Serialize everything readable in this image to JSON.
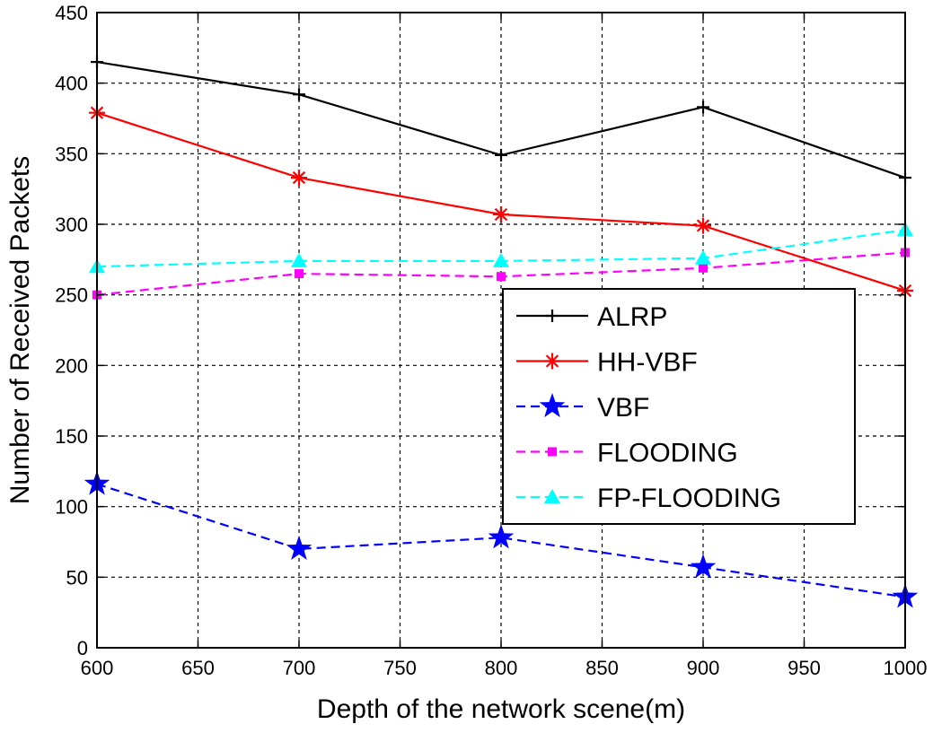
{
  "chart_data": {
    "type": "line",
    "title": "",
    "xlabel": "Depth of the network scene(m)",
    "ylabel": "Number of Received Packets",
    "xlim": [
      600,
      1000
    ],
    "ylim": [
      0,
      450
    ],
    "xticks": [
      600,
      650,
      700,
      750,
      800,
      850,
      900,
      950,
      1000
    ],
    "yticks": [
      0,
      50,
      100,
      150,
      200,
      250,
      300,
      350,
      400,
      450
    ],
    "grid": true,
    "legend_position": "center-right",
    "x": [
      600,
      700,
      800,
      900,
      1000
    ],
    "series": [
      {
        "name": "ALRP",
        "color": "#000000",
        "dash": "solid",
        "marker": "plus",
        "values": [
          415,
          392,
          349,
          383,
          333
        ]
      },
      {
        "name": "HH-VBF",
        "color": "#ff0000",
        "dash": "solid",
        "marker": "asterisk",
        "values": [
          379,
          333,
          307,
          299,
          253
        ]
      },
      {
        "name": "VBF",
        "color": "#0000ff",
        "dash": "dashed",
        "marker": "star",
        "values": [
          116,
          70,
          78,
          57,
          36
        ]
      },
      {
        "name": "FLOODING",
        "color": "#ff00ff",
        "dash": "dashed",
        "marker": "square",
        "values": [
          250,
          265,
          263,
          269,
          280
        ]
      },
      {
        "name": "FP-FLOODING",
        "color": "#00ffff",
        "dash": "dashed",
        "marker": "triangle",
        "values": [
          270,
          274,
          274,
          276,
          296
        ]
      }
    ]
  }
}
